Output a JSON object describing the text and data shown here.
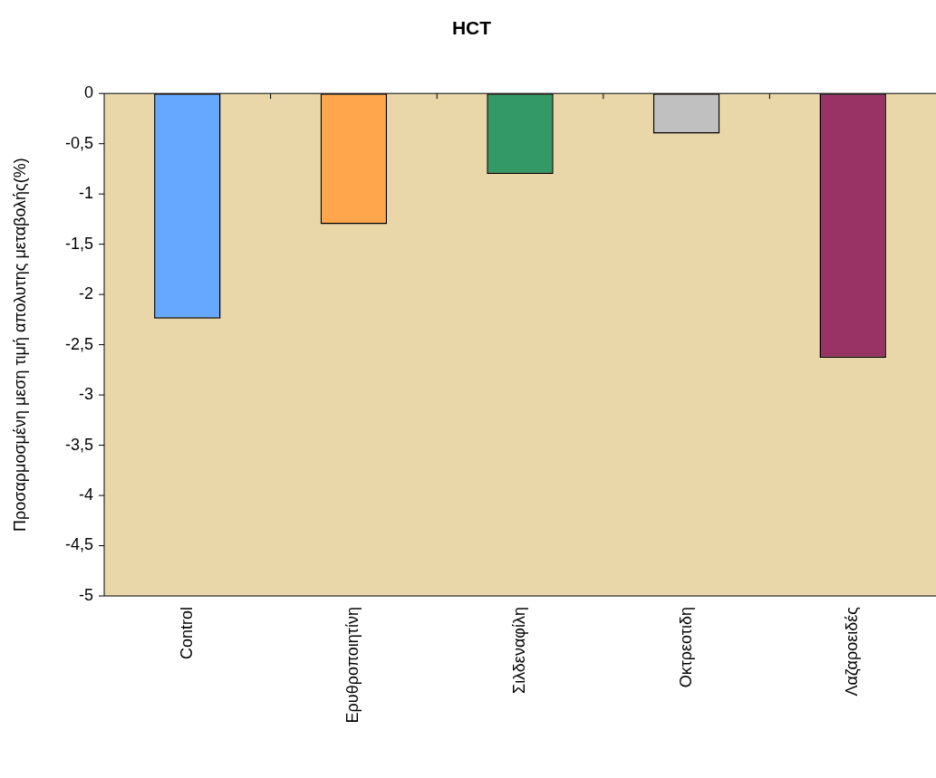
{
  "chart_data": {
    "type": "bar",
    "title": "HCT",
    "ylabel": "Προσαρμοσμένη μεση τιμή απολυτης μεταβολής(%)",
    "categories": [
      "Control",
      "Ερυθροποιητίνη",
      "Σιλδεναφίλη",
      "Οκτρεοτιδη",
      "Λαζαροειδές"
    ],
    "values": [
      -2.24,
      -1.3,
      -0.8,
      -0.4,
      -2.63
    ],
    "colors": [
      "#66a8ff",
      "#ffa64d",
      "#339966",
      "#c0c0c0",
      "#993366"
    ],
    "ylim": [
      -5,
      0
    ],
    "yticks": [
      {
        "value": 0,
        "label": "0"
      },
      {
        "value": -0.5,
        "label": "-0,5"
      },
      {
        "value": -1,
        "label": "-1"
      },
      {
        "value": -1.5,
        "label": "-1,5"
      },
      {
        "value": -2,
        "label": "-2"
      },
      {
        "value": -2.5,
        "label": "-2,5"
      },
      {
        "value": -3,
        "label": "-3"
      },
      {
        "value": -3.5,
        "label": "-3,5"
      },
      {
        "value": -4,
        "label": "-4"
      },
      {
        "value": -4.5,
        "label": "-4,5"
      },
      {
        "value": -5,
        "label": "-5"
      }
    ],
    "grid": false,
    "legend": false
  }
}
